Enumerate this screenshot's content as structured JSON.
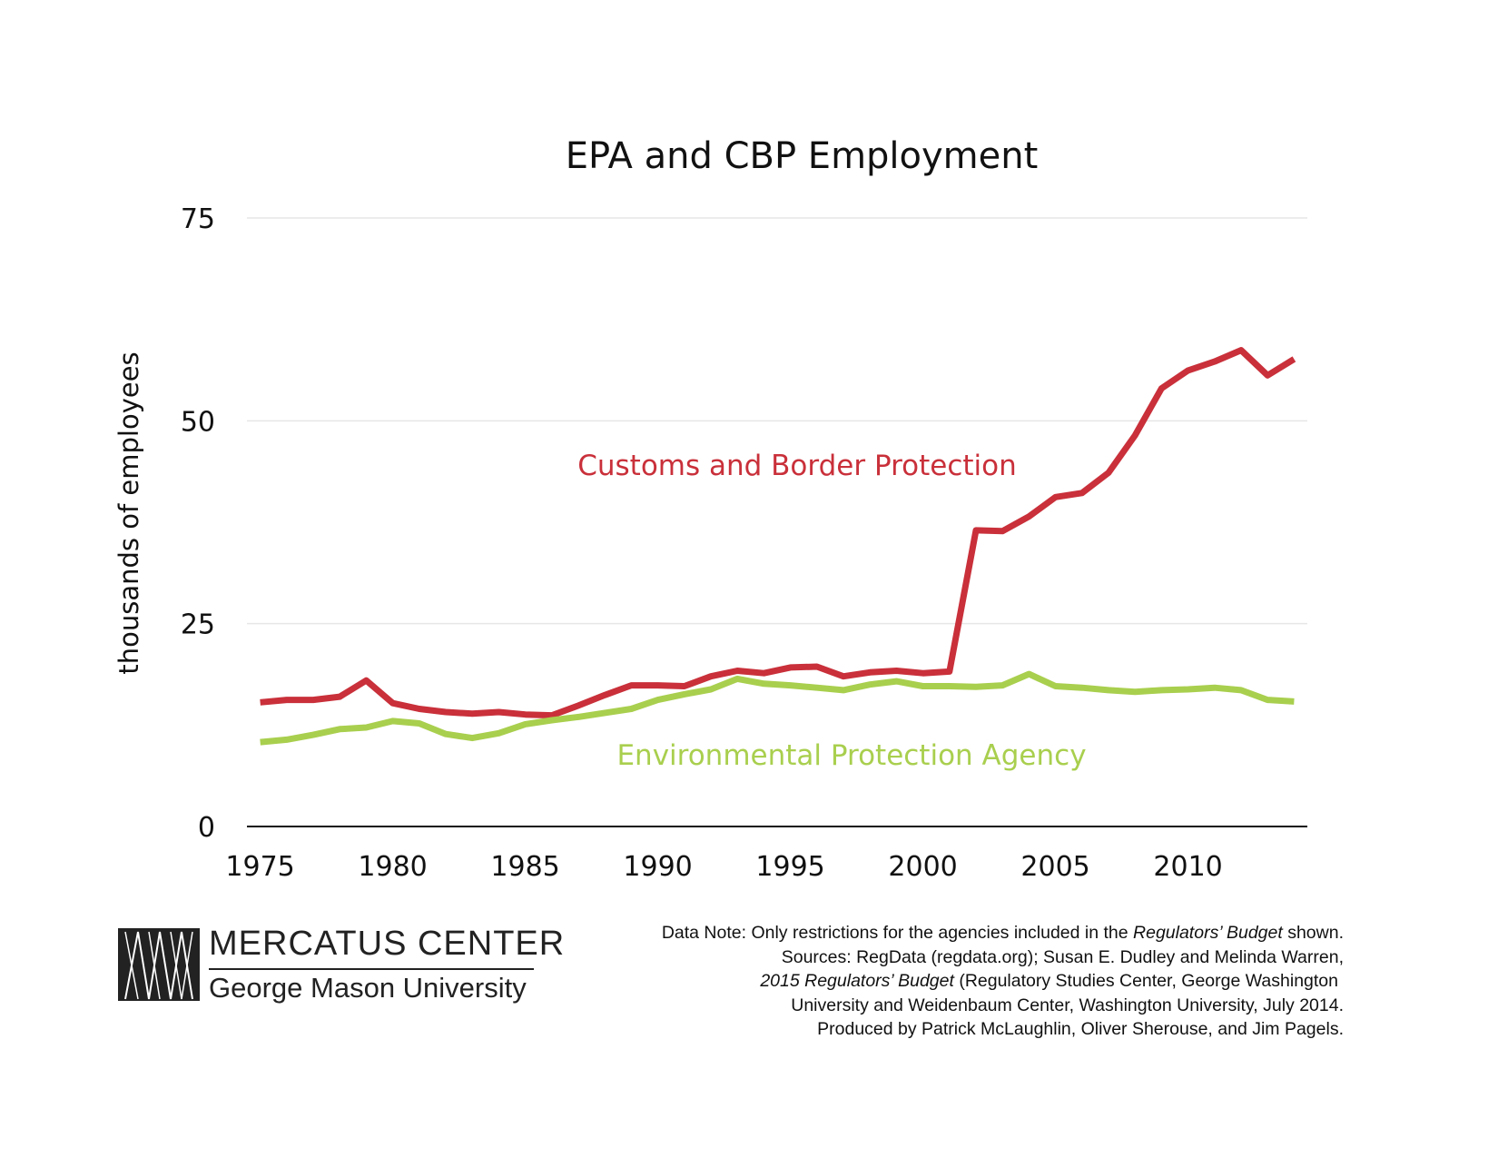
{
  "chart_data": {
    "type": "line",
    "title": "EPA and CBP Employment",
    "ylabel": "thousands of employees",
    "xlabel": "",
    "xlim": [
      1974.5,
      2014.5
    ],
    "ylim": [
      0,
      75
    ],
    "x_ticks": [
      "1975",
      "1980",
      "1985",
      "1990",
      "1995",
      "2000",
      "2005",
      "2010"
    ],
    "y_ticks": [
      "0",
      "25",
      "50",
      "75"
    ],
    "grid": "horizontal",
    "x": [
      1975,
      1976,
      1977,
      1978,
      1979,
      1980,
      1981,
      1982,
      1983,
      1984,
      1985,
      1986,
      1987,
      1988,
      1989,
      1990,
      1991,
      1992,
      1993,
      1994,
      1995,
      1996,
      1997,
      1998,
      1999,
      2000,
      2001,
      2002,
      2003,
      2004,
      2005,
      2006,
      2007,
      2008,
      2009,
      2010,
      2011,
      2012,
      2013,
      2014
    ],
    "series": [
      {
        "name": "Customs and Border Protection",
        "color": "#c9303a",
        "values": [
          15.3,
          15.6,
          15.6,
          16.0,
          18.0,
          15.2,
          14.5,
          14.1,
          13.9,
          14.1,
          13.8,
          13.7,
          14.9,
          16.2,
          17.4,
          17.4,
          17.3,
          18.5,
          19.2,
          18.9,
          19.6,
          19.7,
          18.5,
          19.0,
          19.2,
          18.9,
          19.1,
          36.5,
          36.4,
          38.2,
          40.6,
          41.1,
          43.6,
          48.2,
          54.0,
          56.2,
          57.3,
          58.7,
          55.6,
          57.6
        ]
      },
      {
        "name": "Environmental Protection Agency",
        "color": "#a9cf4e",
        "values": [
          10.4,
          10.7,
          11.3,
          12.0,
          12.2,
          13.0,
          12.7,
          11.4,
          10.9,
          11.5,
          12.6,
          13.1,
          13.5,
          14.0,
          14.5,
          15.6,
          16.3,
          16.9,
          18.2,
          17.6,
          17.4,
          17.1,
          16.8,
          17.5,
          17.9,
          17.3,
          17.3,
          17.2,
          17.4,
          18.8,
          17.3,
          17.1,
          16.8,
          16.6,
          16.8,
          16.9,
          17.1,
          16.8,
          15.6,
          15.4
        ]
      }
    ]
  },
  "footer": {
    "logo_name": "MERCATUS CENTER",
    "logo_sub": "George Mason University",
    "note_line1_pre": "Data Note: Only restrictions for the agencies included in the ",
    "note_line1_italic": "Regulators’ Budget",
    "note_line1_post": " shown.",
    "note_line2": "Sources: RegData (regdata.org); Susan E. Dudley and Melinda Warren,",
    "note_line3_italic": "2015 Regulators’ Budget",
    "note_line3_post": " (Regulatory Studies Center, George Washington",
    "note_line4": "University and Weidenbaum Center, Washington University, July 2014.",
    "note_line5": "Produced by Patrick McLaughlin, Oliver Sherouse, and Jim Pagels."
  }
}
